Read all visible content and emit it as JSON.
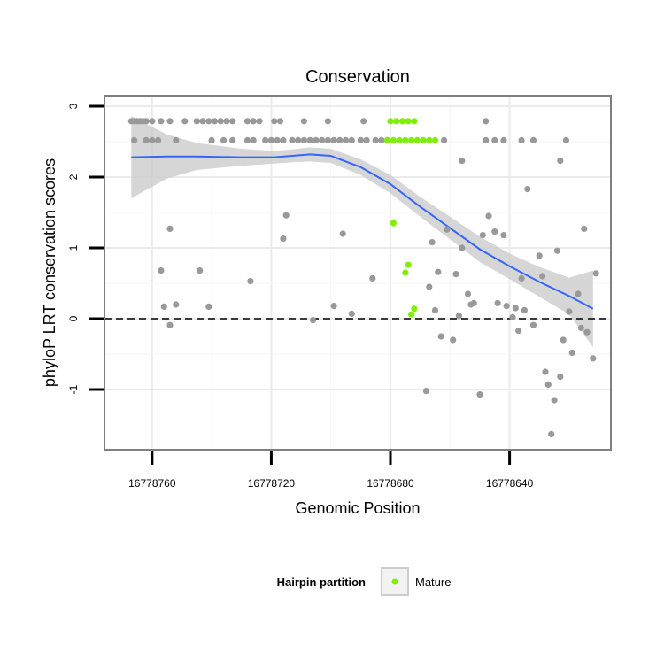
{
  "chart_data": {
    "type": "scatter",
    "title": "Conservation",
    "xlabel": "Genomic Position",
    "ylabel": "phyloP LRT conservation scores",
    "xlim": [
      16778776,
      16778606
    ],
    "ylim": [
      -1.85,
      3.15
    ],
    "x_reversed": true,
    "x_ticks": [
      16778760,
      16778720,
      16778680,
      16778640
    ],
    "x_tick_labels": [
      "16778760",
      "16778720",
      "16778680",
      "16778640"
    ],
    "y_ticks": [
      -1,
      0,
      1,
      2,
      3
    ],
    "y_tick_labels": [
      "-1",
      "0",
      "1",
      "2",
      "3"
    ],
    "reference_line": {
      "y": 0,
      "style": "dashed",
      "color": "#000000"
    },
    "colors": {
      "other": "#999999",
      "mature": "#7FEE00",
      "smooth": "#3366FF",
      "ribbon": "#CCCCCC",
      "panel_border": "#7F7F7F",
      "grid": "#EBEBEB"
    },
    "legend": {
      "title": "Hairpin partition",
      "entries": [
        {
          "label": "Mature",
          "color": "#7FEE00"
        }
      ],
      "position": "bottom"
    },
    "smooth": {
      "x": [
        16778767,
        16778755,
        16778745,
        16778730,
        16778719,
        16778713,
        16778707,
        16778700,
        16778690,
        16778680,
        16778670,
        16778660,
        16778650,
        16778640,
        16778630,
        16778620,
        16778612
      ],
      "y": [
        2.28,
        2.29,
        2.29,
        2.28,
        2.28,
        2.3,
        2.32,
        2.3,
        2.14,
        1.9,
        1.58,
        1.28,
        0.98,
        0.74,
        0.52,
        0.32,
        0.14
      ],
      "lower": [
        1.7,
        1.98,
        2.1,
        2.16,
        2.19,
        2.21,
        2.22,
        2.2,
        2.03,
        1.77,
        1.44,
        1.12,
        0.8,
        0.56,
        0.31,
        0.06,
        -0.4
      ],
      "upper": [
        2.86,
        2.6,
        2.48,
        2.4,
        2.37,
        2.39,
        2.42,
        2.4,
        2.25,
        2.03,
        1.72,
        1.44,
        1.16,
        0.92,
        0.73,
        0.58,
        0.68
      ]
    },
    "series": [
      {
        "name": "Other",
        "color": "#999999",
        "points": [
          [
            16778767,
            2.79
          ],
          [
            16778766,
            2.79
          ],
          [
            16778765,
            2.79
          ],
          [
            16778764,
            2.79
          ],
          [
            16778763,
            2.79
          ],
          [
            16778762,
            2.79
          ],
          [
            16778760,
            2.79
          ],
          [
            16778757,
            2.79
          ],
          [
            16778754,
            2.79
          ],
          [
            16778749,
            2.79
          ],
          [
            16778745,
            2.79
          ],
          [
            16778743,
            2.79
          ],
          [
            16778741,
            2.79
          ],
          [
            16778739,
            2.79
          ],
          [
            16778737,
            2.79
          ],
          [
            16778735,
            2.79
          ],
          [
            16778733,
            2.79
          ],
          [
            16778728,
            2.79
          ],
          [
            16778726,
            2.79
          ],
          [
            16778724,
            2.79
          ],
          [
            16778719,
            2.79
          ],
          [
            16778717,
            2.79
          ],
          [
            16778709,
            2.79
          ],
          [
            16778701,
            2.79
          ],
          [
            16778689,
            2.79
          ],
          [
            16778766,
            2.52
          ],
          [
            16778762,
            2.52
          ],
          [
            16778760,
            2.52
          ],
          [
            16778758,
            2.52
          ],
          [
            16778752,
            2.52
          ],
          [
            16778740,
            2.52
          ],
          [
            16778736,
            2.52
          ],
          [
            16778733,
            2.52
          ],
          [
            16778728,
            2.52
          ],
          [
            16778726,
            2.52
          ],
          [
            16778722,
            2.52
          ],
          [
            16778720,
            2.52
          ],
          [
            16778718,
            2.52
          ],
          [
            16778716,
            2.52
          ],
          [
            16778713,
            2.52
          ],
          [
            16778711,
            2.52
          ],
          [
            16778709,
            2.52
          ],
          [
            16778707,
            2.52
          ],
          [
            16778705,
            2.52
          ],
          [
            16778703,
            2.52
          ],
          [
            16778701,
            2.52
          ],
          [
            16778699,
            2.52
          ],
          [
            16778697,
            2.52
          ],
          [
            16778695,
            2.52
          ],
          [
            16778693,
            2.52
          ],
          [
            16778690,
            2.52
          ],
          [
            16778688,
            2.52
          ],
          [
            16778685,
            2.52
          ],
          [
            16778683,
            2.52
          ],
          [
            16778681,
            2.52
          ],
          [
            16778662,
            2.52
          ],
          [
            16778648,
            2.52
          ],
          [
            16778645,
            2.52
          ],
          [
            16778642,
            2.52
          ],
          [
            16778636,
            2.52
          ],
          [
            16778632,
            2.52
          ],
          [
            16778621,
            2.52
          ],
          [
            16778648,
            2.79
          ],
          [
            16778656,
            2.23
          ],
          [
            16778623,
            2.23
          ],
          [
            16778634,
            1.83
          ],
          [
            16778757,
            0.68
          ],
          [
            16778744,
            0.68
          ],
          [
            16778754,
            1.27
          ],
          [
            16778754,
            -0.09
          ],
          [
            16778752,
            0.2
          ],
          [
            16778741,
            0.17
          ],
          [
            16778756,
            0.17
          ],
          [
            16778727,
            0.53
          ],
          [
            16778715,
            1.46
          ],
          [
            16778716,
            1.13
          ],
          [
            16778706,
            -0.02
          ],
          [
            16778699,
            0.18
          ],
          [
            16778696,
            1.2
          ],
          [
            16778693,
            0.07
          ],
          [
            16778686,
            0.57
          ],
          [
            16778668,
            -1.02
          ],
          [
            16778667,
            0.45
          ],
          [
            16778666,
            1.08
          ],
          [
            16778665,
            0.12
          ],
          [
            16778664,
            0.66
          ],
          [
            16778663,
            -0.25
          ],
          [
            16778661,
            1.26
          ],
          [
            16778659,
            -0.3
          ],
          [
            16778658,
            0.63
          ],
          [
            16778657,
            0.04
          ],
          [
            16778656,
            1.0
          ],
          [
            16778654,
            0.35
          ],
          [
            16778653,
            0.2
          ],
          [
            16778652,
            0.22
          ],
          [
            16778650,
            -1.07
          ],
          [
            16778649,
            1.18
          ],
          [
            16778647,
            1.45
          ],
          [
            16778645,
            1.23
          ],
          [
            16778644,
            0.22
          ],
          [
            16778642,
            1.18
          ],
          [
            16778641,
            0.18
          ],
          [
            16778639,
            0.02
          ],
          [
            16778638,
            0.15
          ],
          [
            16778637,
            -0.17
          ],
          [
            16778636,
            0.57
          ],
          [
            16778635,
            0.12
          ],
          [
            16778632,
            -0.09
          ],
          [
            16778630,
            0.89
          ],
          [
            16778629,
            0.6
          ],
          [
            16778628,
            -0.75
          ],
          [
            16778627,
            -0.93
          ],
          [
            16778626,
            -1.63
          ],
          [
            16778625,
            -1.15
          ],
          [
            16778624,
            0.96
          ],
          [
            16778623,
            -0.82
          ],
          [
            16778622,
            -0.3
          ],
          [
            16778620,
            0.1
          ],
          [
            16778619,
            -0.48
          ],
          [
            16778617,
            0.35
          ],
          [
            16778616,
            -0.13
          ],
          [
            16778615,
            1.27
          ],
          [
            16778614,
            -0.19
          ],
          [
            16778612,
            -0.56
          ],
          [
            16778611,
            0.64
          ]
        ]
      },
      {
        "name": "Mature",
        "color": "#7FEE00",
        "points": [
          [
            16778680,
            2.79
          ],
          [
            16778678,
            2.79
          ],
          [
            16778676,
            2.79
          ],
          [
            16778674,
            2.79
          ],
          [
            16778672,
            2.79
          ],
          [
            16778681,
            2.52
          ],
          [
            16778679,
            2.52
          ],
          [
            16778677,
            2.52
          ],
          [
            16778675,
            2.52
          ],
          [
            16778673,
            2.52
          ],
          [
            16778671,
            2.52
          ],
          [
            16778669,
            2.52
          ],
          [
            16778667,
            2.52
          ],
          [
            16778665,
            2.52
          ],
          [
            16778679,
            1.35
          ],
          [
            16778674,
            0.76
          ],
          [
            16778675,
            0.65
          ],
          [
            16778672,
            0.14
          ],
          [
            16778673,
            0.06
          ]
        ]
      }
    ]
  }
}
